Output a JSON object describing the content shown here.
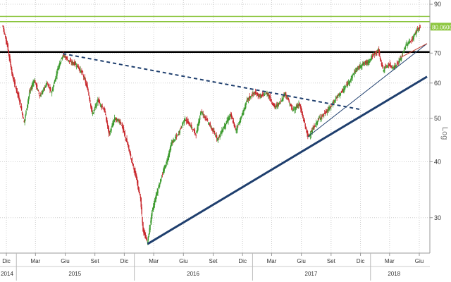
{
  "chart_data": {
    "type": "candlestick",
    "yscale": "log",
    "scale_label": "Log",
    "ylim": [
      25,
      92
    ],
    "xlim": [
      "2014-11-20",
      "2018-06-25"
    ],
    "y_ticks": [
      30,
      40,
      50,
      60,
      70,
      80,
      90
    ],
    "x_ticks": [
      {
        "date": "2014-12-01",
        "label": "Dic"
      },
      {
        "date": "2015-03-01",
        "label": "Mar"
      },
      {
        "date": "2015-06-01",
        "label": "Giu"
      },
      {
        "date": "2015-09-01",
        "label": "Set"
      },
      {
        "date": "2015-12-01",
        "label": "Dic"
      },
      {
        "date": "2016-03-01",
        "label": "Mar"
      },
      {
        "date": "2016-06-01",
        "label": "Giu"
      },
      {
        "date": "2016-09-01",
        "label": "Set"
      },
      {
        "date": "2016-12-01",
        "label": "Dic"
      },
      {
        "date": "2017-03-01",
        "label": "Mar"
      },
      {
        "date": "2017-06-01",
        "label": "Giu"
      },
      {
        "date": "2017-09-01",
        "label": "Set"
      },
      {
        "date": "2017-12-01",
        "label": "Dic"
      },
      {
        "date": "2018-03-01",
        "label": "Mar"
      },
      {
        "date": "2018-06-01",
        "label": "Giu"
      }
    ],
    "year_labels": [
      {
        "date": "2014-12-01",
        "label": "2014"
      },
      {
        "date": "2015-07-01",
        "label": "2015"
      },
      {
        "date": "2016-07-01",
        "label": "2016"
      },
      {
        "date": "2017-07-01",
        "label": "2017"
      },
      {
        "date": "2018-03-15",
        "label": "2018"
      }
    ],
    "year_dividers": [
      "2015-01-01",
      "2016-01-01",
      "2017-01-01",
      "2018-01-01"
    ],
    "last_price_label": "80.0600",
    "last_price": 80.06,
    "price_path": [
      [
        "2014-11-20",
        80.5
      ],
      [
        "2014-12-05",
        72
      ],
      [
        "2014-12-20",
        62
      ],
      [
        "2015-01-10",
        55
      ],
      [
        "2015-01-25",
        49
      ],
      [
        "2015-02-10",
        57
      ],
      [
        "2015-02-25",
        61
      ],
      [
        "2015-03-15",
        56
      ],
      [
        "2015-04-05",
        60
      ],
      [
        "2015-04-20",
        57
      ],
      [
        "2015-05-10",
        65
      ],
      [
        "2015-05-25",
        69.5
      ],
      [
        "2015-06-15",
        67
      ],
      [
        "2015-07-05",
        66
      ],
      [
        "2015-07-25",
        63
      ],
      [
        "2015-08-10",
        58
      ],
      [
        "2015-08-24",
        51
      ],
      [
        "2015-09-10",
        55
      ],
      [
        "2015-10-01",
        52
      ],
      [
        "2015-10-15",
        46
      ],
      [
        "2015-11-01",
        50
      ],
      [
        "2015-11-20",
        49
      ],
      [
        "2015-12-10",
        44
      ],
      [
        "2015-12-25",
        40
      ],
      [
        "2016-01-10",
        36
      ],
      [
        "2016-01-20",
        33
      ],
      [
        "2016-01-28",
        28
      ],
      [
        "2016-02-11",
        26.5
      ],
      [
        "2016-02-25",
        31
      ],
      [
        "2016-03-10",
        34
      ],
      [
        "2016-03-25",
        37
      ],
      [
        "2016-04-10",
        40
      ],
      [
        "2016-04-25",
        44
      ],
      [
        "2016-05-15",
        46
      ],
      [
        "2016-06-05",
        50
      ],
      [
        "2016-06-24",
        48
      ],
      [
        "2016-07-10",
        46
      ],
      [
        "2016-07-25",
        52
      ],
      [
        "2016-08-10",
        50
      ],
      [
        "2016-08-30",
        47
      ],
      [
        "2016-09-15",
        45
      ],
      [
        "2016-10-05",
        48
      ],
      [
        "2016-10-25",
        51
      ],
      [
        "2016-11-10",
        47
      ],
      [
        "2016-11-30",
        51
      ],
      [
        "2016-12-15",
        55
      ],
      [
        "2017-01-05",
        57
      ],
      [
        "2017-01-25",
        56
      ],
      [
        "2017-02-15",
        57
      ],
      [
        "2017-03-10",
        53
      ],
      [
        "2017-03-25",
        54
      ],
      [
        "2017-04-12",
        57
      ],
      [
        "2017-05-05",
        52
      ],
      [
        "2017-05-25",
        54
      ],
      [
        "2017-06-10",
        49
      ],
      [
        "2017-06-21",
        45.5
      ],
      [
        "2017-07-05",
        47
      ],
      [
        "2017-07-25",
        50
      ],
      [
        "2017-08-10",
        51
      ],
      [
        "2017-08-30",
        53
      ],
      [
        "2017-09-20",
        56
      ],
      [
        "2017-10-10",
        58
      ],
      [
        "2017-10-30",
        61
      ],
      [
        "2017-11-15",
        64
      ],
      [
        "2017-12-05",
        66
      ],
      [
        "2017-12-25",
        67
      ],
      [
        "2018-01-15",
        70
      ],
      [
        "2018-01-25",
        71
      ],
      [
        "2018-02-09",
        64
      ],
      [
        "2018-02-25",
        66
      ],
      [
        "2018-03-15",
        65
      ],
      [
        "2018-04-05",
        68
      ],
      [
        "2018-04-20",
        73
      ],
      [
        "2018-05-10",
        75
      ],
      [
        "2018-05-25",
        79
      ],
      [
        "2018-06-05",
        80.06
      ]
    ],
    "horizontal_lines": [
      {
        "name": "green-band-upper",
        "y": 84.5,
        "color": "#8cc63f"
      },
      {
        "name": "green-band-lower",
        "y": 82.3,
        "color": "#8cc63f"
      },
      {
        "name": "black-resistance",
        "y": 70.4,
        "color": "#000000"
      }
    ],
    "trendlines": [
      {
        "name": "dashed-downtrend",
        "from": [
          "2015-05-25",
          69.8
        ],
        "to": [
          "2017-12-05",
          52.3
        ],
        "color": "#1f3f6e",
        "dashed": true,
        "width": 2
      },
      {
        "name": "primary-uptrend",
        "from": [
          "2016-02-11",
          26.2
        ],
        "to": [
          "2018-06-25",
          62
        ],
        "color": "#1f3f6e",
        "dashed": false,
        "width": 3
      },
      {
        "name": "secondary-uptrend",
        "from": [
          "2017-06-21",
          45.5
        ],
        "to": [
          "2018-06-25",
          73.5
        ],
        "color": "#1f3f6e",
        "dashed": false,
        "width": 1
      },
      {
        "name": "red-uptrend",
        "from": [
          "2018-04-05",
          68.5
        ],
        "to": [
          "2018-06-25",
          73.5
        ],
        "color": "#c0392b",
        "dashed": false,
        "width": 1
      }
    ],
    "colors": {
      "up": "#3c9a2e",
      "down": "#c8282d",
      "label_bg": "#8cc63f",
      "grid": "#cfcfcf"
    },
    "grid": true
  }
}
